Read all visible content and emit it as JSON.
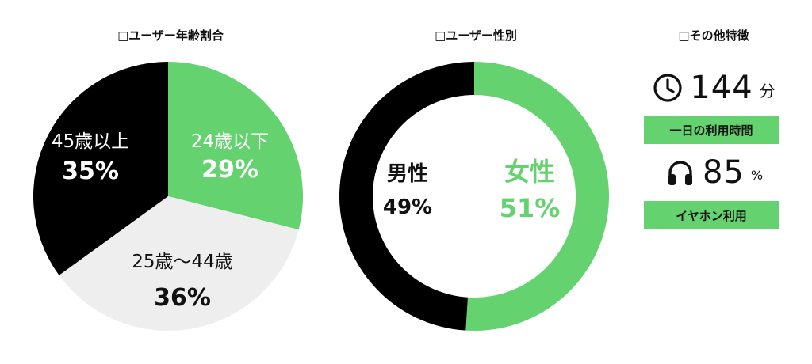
{
  "pie_chart": {
    "title": "□ユーザー年齢割合"
  },
  "donut_chart": {
    "title": "□ユーザー性別"
  },
  "other": {
    "title": "□その他特徴",
    "stats": [
      {
        "icon": "clock-icon",
        "value": "144",
        "unit": "分",
        "caption": "一日の利用時間"
      },
      {
        "icon": "headphones-icon",
        "value": "85",
        "unit": "%",
        "caption": "イヤホン利用"
      }
    ]
  },
  "colors": {
    "green": "#64d36f",
    "black": "#000000",
    "light_gray": "#eeeeee",
    "white": "#ffffff"
  },
  "chart_data": [
    {
      "type": "pie",
      "title": "□ユーザー年齢割合",
      "slices": [
        {
          "label": "24歳以下",
          "value": 29,
          "value_label": "29%",
          "color": "#64d36f"
        },
        {
          "label": "25歳〜44歳",
          "value": 36,
          "value_label": "36%",
          "color": "#eeeeee"
        },
        {
          "label": "45歳以上",
          "value": 35,
          "value_label": "35%",
          "color": "#000000"
        }
      ]
    },
    {
      "type": "pie",
      "subtype": "donut",
      "title": "□ユーザー性別",
      "slices": [
        {
          "label": "女性",
          "value": 51,
          "value_label": "51%",
          "color": "#64d36f"
        },
        {
          "label": "男性",
          "value": 49,
          "value_label": "49%",
          "color": "#000000"
        }
      ]
    }
  ]
}
